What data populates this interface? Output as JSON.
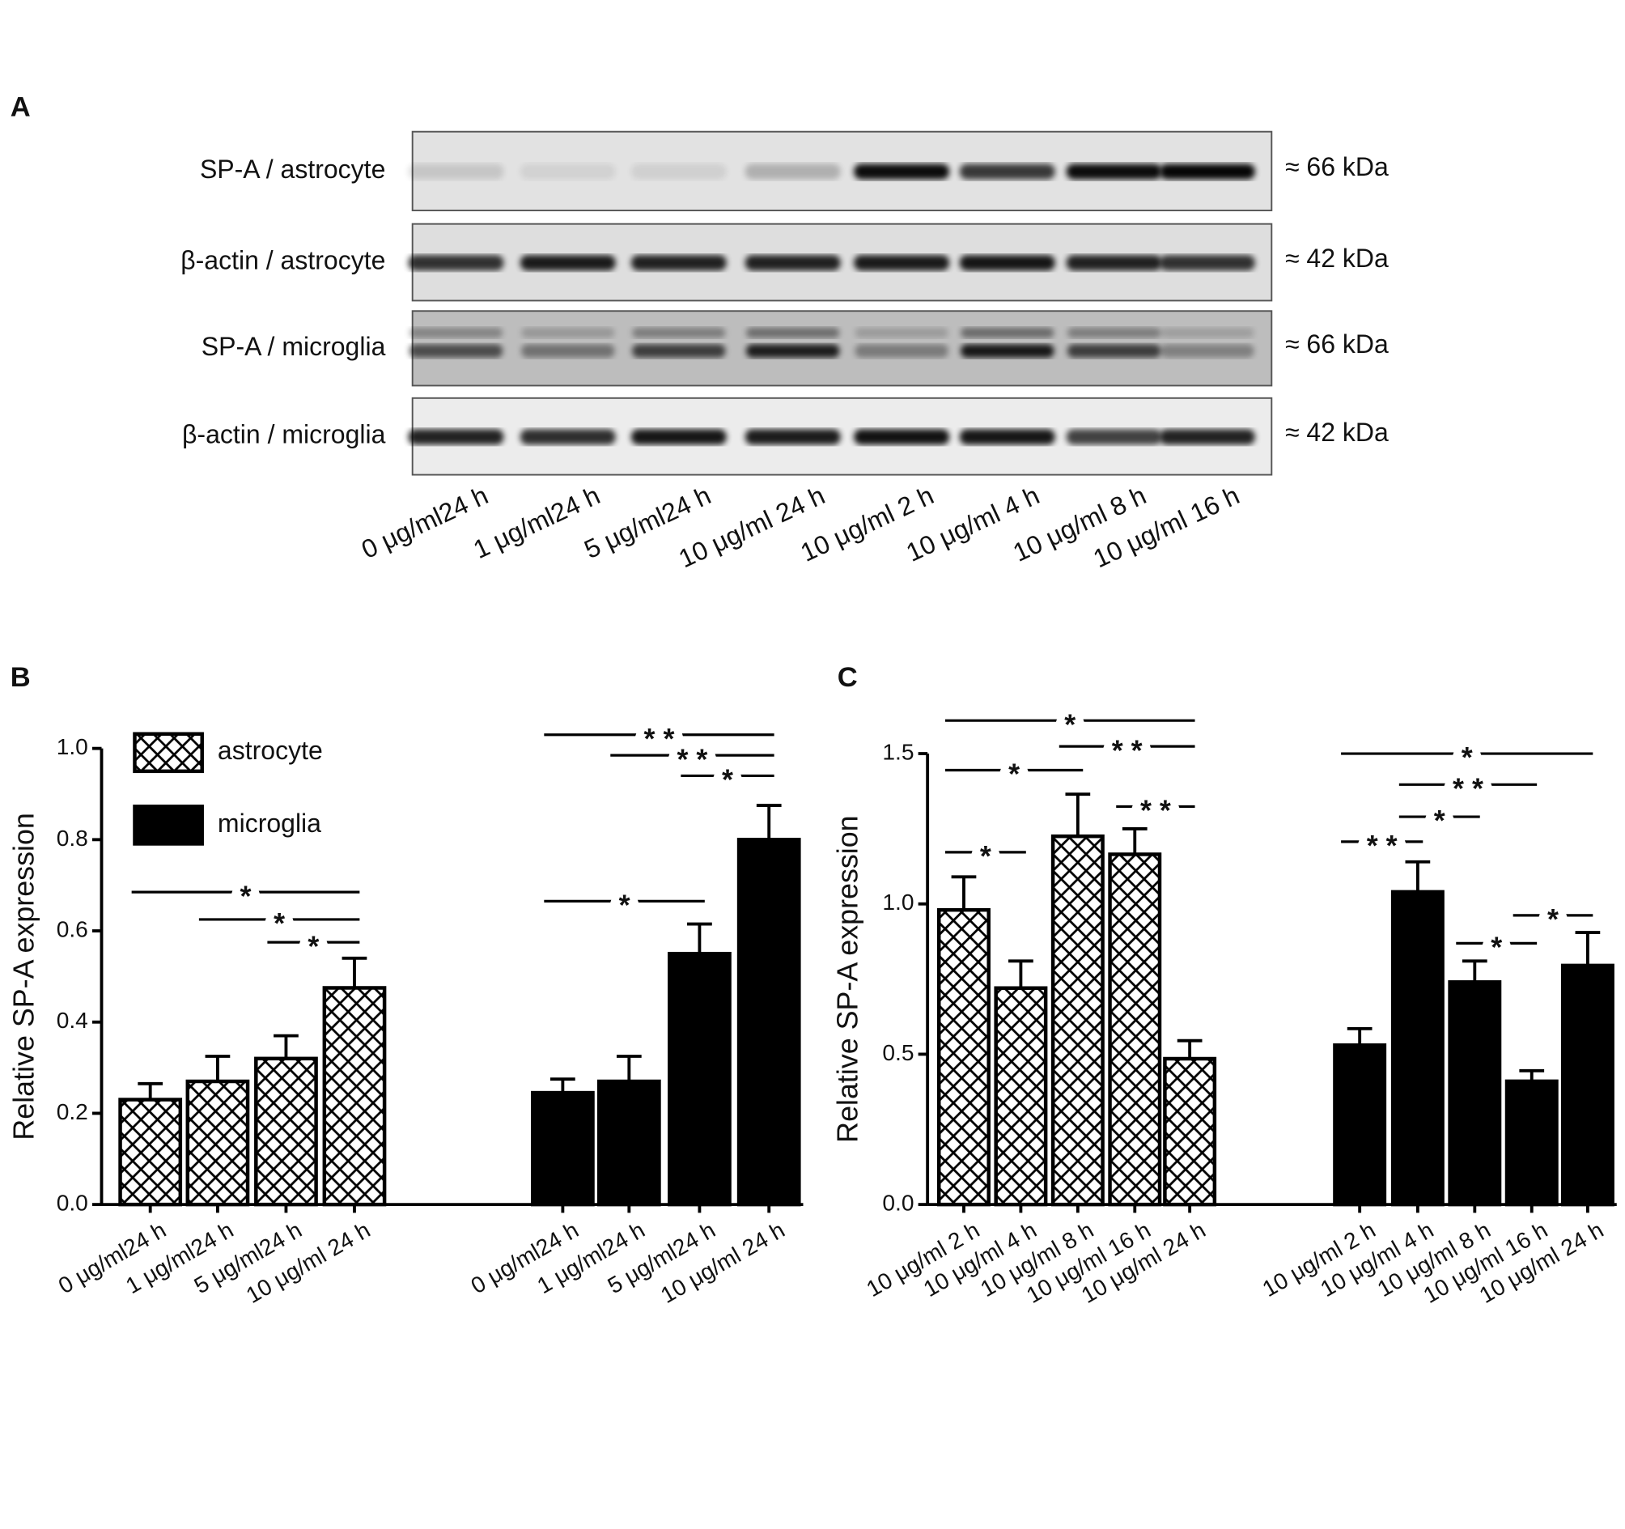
{
  "panels": {
    "a": "A",
    "b": "B",
    "c": "C"
  },
  "blot": {
    "rows": [
      {
        "label": "SP-A / astrocyte",
        "size": "≈ 66 kDa"
      },
      {
        "label": "β-actin / astrocyte",
        "size": "≈ 42 kDa"
      },
      {
        "label": "SP-A / microglia",
        "size": "≈ 66 kDa"
      },
      {
        "label": "β-actin / microglia",
        "size": "≈ 42 kDa"
      }
    ],
    "lanes": [
      "0 μg/ml24 h",
      "1 μg/ml24 h",
      "5 μg/ml24 h",
      "10 μg/ml  24 h",
      "10 μg/ml  2 h",
      "10 μg/ml  4 h",
      "10 μg/ml  8 h",
      "10 μg/ml  16 h"
    ]
  },
  "chart_data": [
    {
      "type": "bar",
      "ylabel": "Relative SP-A expression",
      "categories": [
        "0 μg/ml24 h",
        "1 μg/ml24 h",
        "5 μg/ml24 h",
        "10 μg/ml  24 h"
      ],
      "ylim": [
        0,
        1.0
      ],
      "yticks": [
        {
          "value": 0,
          "label": "0.0"
        },
        0.2,
        0.4,
        0.6,
        0.8,
        {
          "value": 1.0,
          "label": "1.0"
        }
      ],
      "legend": "upper left",
      "series": [
        {
          "name": "astrocyte",
          "color": "#000000",
          "fill_style": "crosshatch",
          "values": [
            0.23,
            0.27,
            0.32,
            0.475
          ],
          "errors": [
            0.035,
            0.055,
            0.05,
            0.065
          ]
        },
        {
          "name": "microglia",
          "color": "#000000",
          "fill_style": "solid",
          "values": [
            0.245,
            0.27,
            0.55,
            0.8
          ],
          "errors": [
            0.03,
            0.055,
            0.065,
            0.075
          ]
        }
      ],
      "annotations": [
        {
          "series": 0,
          "from": 0,
          "to": 3,
          "y": 0.685,
          "label": "*"
        },
        {
          "series": 0,
          "from": 1,
          "to": 3,
          "y": 0.625,
          "label": "*"
        },
        {
          "series": 0,
          "from": 2,
          "to": 3,
          "y": 0.575,
          "label": "*"
        },
        {
          "series": 1,
          "from": 0,
          "to": 3,
          "y": 1.03,
          "label": "* *"
        },
        {
          "series": 1,
          "from": 1,
          "to": 3,
          "y": 0.985,
          "label": "* *"
        },
        {
          "series": 1,
          "from": 2,
          "to": 3,
          "y": 0.94,
          "label": "*"
        },
        {
          "series": 1,
          "from": 0,
          "to": 2,
          "y": 0.665,
          "label": "*"
        }
      ]
    },
    {
      "type": "bar",
      "ylabel": "Relative SP-A expression",
      "categories": [
        "10 μg/ml  2 h",
        "10 μg/ml  4 h",
        "10 μg/ml  8 h",
        "10 μg/ml  16 h",
        "10 μg/ml  24 h"
      ],
      "ylim": [
        0,
        1.5
      ],
      "yticks": [
        {
          "value": 0,
          "label": "0.0"
        },
        0.5,
        {
          "value": 1.0,
          "label": "1.0"
        },
        1.5
      ],
      "series": [
        {
          "name": "astrocyte",
          "color": "#000000",
          "fill_style": "crosshatch",
          "values": [
            0.98,
            0.72,
            1.225,
            1.165,
            0.485
          ],
          "errors": [
            0.11,
            0.09,
            0.14,
            0.085,
            0.06
          ]
        },
        {
          "name": "microglia",
          "color": "#000000",
          "fill_style": "solid",
          "values": [
            0.53,
            1.04,
            0.74,
            0.41,
            0.795
          ],
          "errors": [
            0.055,
            0.1,
            0.07,
            0.035,
            0.11
          ]
        }
      ],
      "annotations": [
        {
          "series": 0,
          "from": 0,
          "to": 4,
          "y": 1.61,
          "label": "*"
        },
        {
          "series": 0,
          "from": 2,
          "to": 4,
          "y": 1.524,
          "label": "* *"
        },
        {
          "series": 0,
          "from": 0,
          "to": 2,
          "y": 1.445,
          "label": "*"
        },
        {
          "series": 0,
          "from": 3,
          "to": 4,
          "y": 1.324,
          "label": "* *"
        },
        {
          "series": 0,
          "from": 0,
          "to": 1,
          "y": 1.172,
          "label": "*"
        },
        {
          "series": 1,
          "from": 0,
          "to": 4,
          "y": 1.5,
          "label": "*"
        },
        {
          "series": 1,
          "from": 1,
          "to": 3,
          "y": 1.397,
          "label": "* *"
        },
        {
          "series": 1,
          "from": 1,
          "to": 2,
          "y": 1.29,
          "label": "*"
        },
        {
          "series": 1,
          "from": 0,
          "to": 1,
          "y": 1.207,
          "label": "* *"
        },
        {
          "series": 1,
          "from": 3,
          "to": 4,
          "y": 0.962,
          "label": "*"
        },
        {
          "series": 1,
          "from": 2,
          "to": 3,
          "y": 0.869,
          "label": "*"
        }
      ]
    }
  ]
}
